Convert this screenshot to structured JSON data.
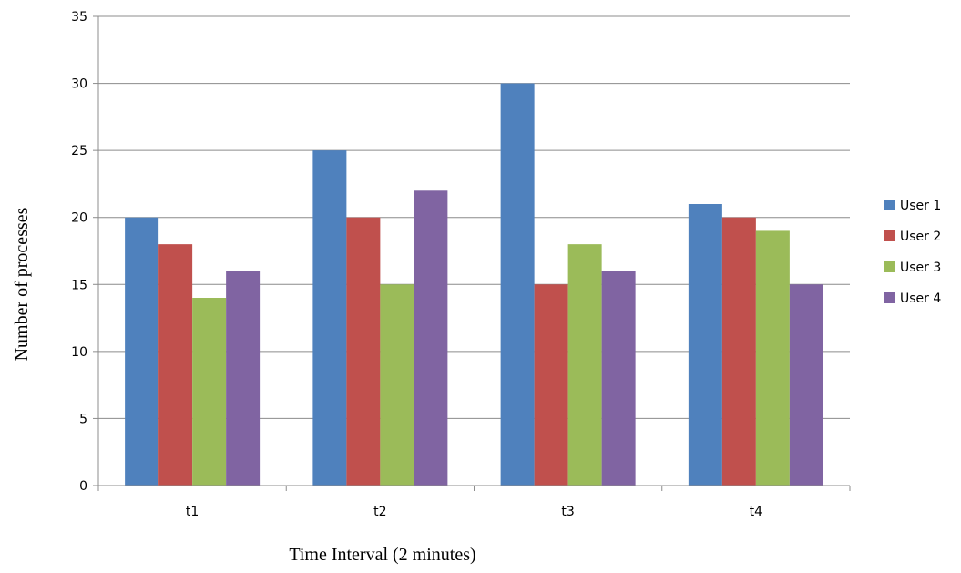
{
  "chart_data": {
    "type": "bar",
    "categories": [
      "t1",
      "t2",
      "t3",
      "t4"
    ],
    "series": [
      {
        "name": "User 1",
        "color": "#4f81bd",
        "values": [
          20,
          25,
          30,
          21
        ]
      },
      {
        "name": "User 2",
        "color": "#c0504d",
        "values": [
          18,
          20,
          15,
          20
        ]
      },
      {
        "name": "User 3",
        "color": "#9bbb59",
        "values": [
          14,
          15,
          18,
          19
        ]
      },
      {
        "name": "User 4",
        "color": "#8064a2",
        "values": [
          16,
          22,
          16,
          15
        ]
      }
    ],
    "xlabel": "Time Interval (2 minutes)",
    "ylabel": "Number of processes",
    "ylim": [
      0,
      35
    ],
    "yticks": [
      0,
      5,
      10,
      15,
      20,
      25,
      30,
      35
    ],
    "grid": true,
    "legend_position": "right"
  }
}
